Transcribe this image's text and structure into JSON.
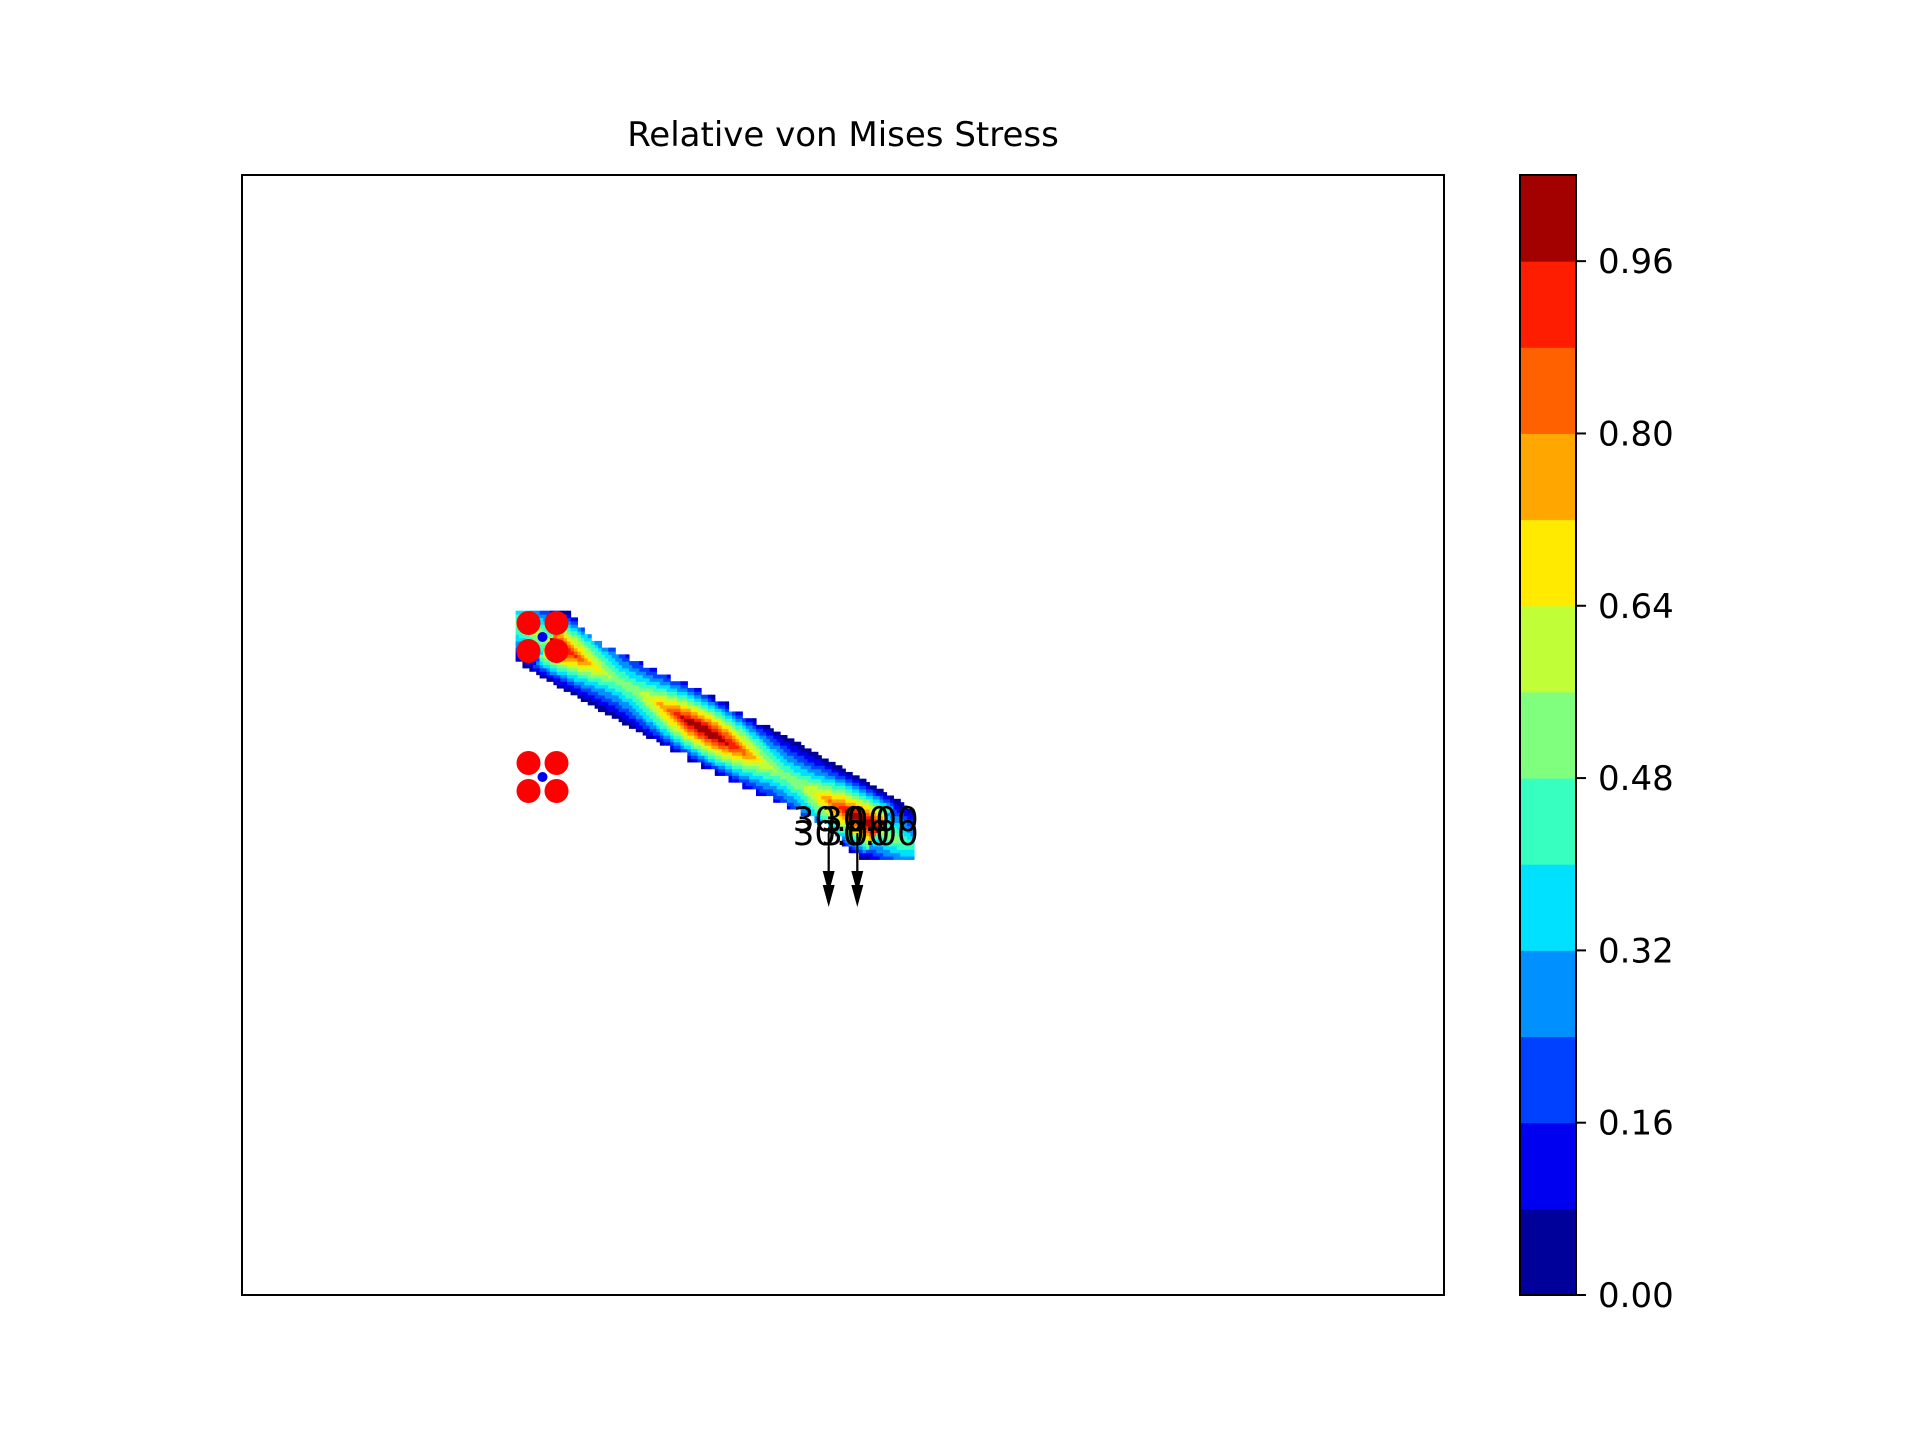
{
  "chart_data": {
    "type": "heatmap",
    "title": "Relative von Mises Stress",
    "xlabel": "",
    "ylabel": "",
    "grid": false,
    "axes_ticks": false,
    "colormap": "jet",
    "colorbar": {
      "range": [
        0.0,
        1.04
      ],
      "ticks": [
        0.0,
        0.16,
        0.32,
        0.48,
        0.64,
        0.8,
        0.96
      ],
      "tick_labels": [
        "0.00",
        "0.16",
        "0.32",
        "0.48",
        "0.64",
        "0.80",
        "0.96"
      ],
      "levels": [
        0.0,
        0.08,
        0.16,
        0.24,
        0.32,
        0.4,
        0.48,
        0.56,
        0.64,
        0.72,
        0.8,
        0.88,
        0.96,
        1.04
      ],
      "colors": [
        "#00009b",
        "#0000f0",
        "#0040ff",
        "#0090ff",
        "#00e0ff",
        "#37ffc0",
        "#80ff7f",
        "#c0ff37",
        "#ffea00",
        "#ffa700",
        "#ff6000",
        "#ff1d00",
        "#a30000"
      ]
    },
    "domain": {
      "x": [
        0,
        42
      ],
      "y": [
        -40,
        0
      ]
    },
    "structure_path": [
      [
        10.5,
        -16.5
      ],
      [
        11.5,
        -17.5
      ],
      [
        13.5,
        -18.5
      ],
      [
        15.5,
        -19.5
      ],
      [
        17.5,
        -20.5
      ],
      [
        19.5,
        -21.5
      ],
      [
        21.5,
        -22.5
      ],
      [
        22.5,
        -23.5
      ]
    ],
    "supports": [
      {
        "type": "pin",
        "x": 10.5,
        "y": -16.5,
        "marker_color": "#ff0000"
      },
      {
        "type": "pin",
        "x": 10.5,
        "y": -21.5,
        "marker_color": "#ff0000"
      }
    ],
    "loads": [
      {
        "label": "30.00",
        "x": 20.5,
        "y": -23.5,
        "direction": "down"
      },
      {
        "label": "30.00",
        "x": 21.5,
        "y": -23.5,
        "direction": "down"
      },
      {
        "label": "30.00",
        "x": 20.5,
        "y": -24.0,
        "direction": "down"
      },
      {
        "label": "30.00",
        "x": 21.5,
        "y": -24.0,
        "direction": "down"
      }
    ]
  }
}
